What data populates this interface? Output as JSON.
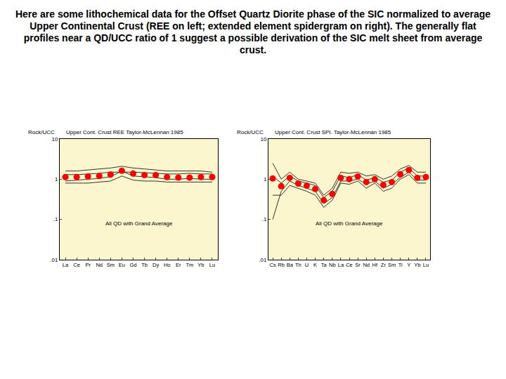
{
  "page": {
    "title": "Here are some lithochemical data for the Offset Quartz Diorite phase of the SIC normalized to average Upper Continental Crust (REE on left; extended element spidergram on right). The generally flat profiles near a QD/UCC ratio of 1 suggest a possible derivation of the SIC melt sheet from average crust."
  },
  "chart_data": [
    {
      "type": "line",
      "title": "Upper Cont. Crust REE Taylor-McLennan 1985",
      "ylabel": "Rock/UCC",
      "annotation": "All QD with Grand Average",
      "log": "y",
      "grid": false,
      "ylim": [
        0.01,
        10
      ],
      "yticks": [
        {
          "value": 0.01,
          "label": ".01"
        },
        {
          "value": 0.1,
          "label": ".1"
        },
        1,
        10
      ],
      "categories": [
        "La",
        "Ce",
        "Pr",
        "Nd",
        "Sm",
        "Eu",
        "Gd",
        "Tb",
        "Dy",
        "Ho",
        "Er",
        "Tm",
        "Yb",
        "Lu"
      ],
      "series": [
        {
          "color": "#000000",
          "line_style": "solid",
          "values": [
            1.6,
            1.6,
            1.7,
            1.8,
            1.9,
            2.1,
            1.9,
            1.8,
            1.7,
            1.6,
            1.6,
            1.6,
            1.6,
            1.5
          ]
        },
        {
          "color": "#000000",
          "line_style": "solid",
          "values": [
            0.8,
            0.8,
            0.8,
            0.85,
            0.9,
            1.2,
            0.95,
            0.9,
            0.9,
            0.85,
            0.85,
            0.85,
            0.85,
            0.85
          ]
        },
        {
          "color": "#000000",
          "line_style": "solid",
          "values": [
            1.3,
            1.3,
            1.35,
            1.4,
            1.5,
            1.5,
            1.5,
            1.45,
            1.4,
            1.35,
            1.35,
            1.4,
            1.35,
            1.35
          ]
        },
        {
          "color": "#000000",
          "line_style": "solid",
          "values": [
            0.9,
            0.95,
            1.0,
            1.05,
            1.15,
            1.6,
            1.2,
            1.15,
            1.1,
            1.0,
            1.0,
            1.05,
            1.0,
            1.0
          ]
        },
        {
          "color": "#ff0000",
          "marker": "circle",
          "values": [
            1.13,
            1.13,
            1.17,
            1.2,
            1.3,
            1.62,
            1.38,
            1.27,
            1.27,
            1.13,
            1.1,
            1.1,
            1.13,
            1.13
          ]
        }
      ]
    },
    {
      "type": "line",
      "title": "Upper Cont. Crust SPI. Taylor-McLennan 1985",
      "ylabel": "Rock/UCC",
      "annotation": "All QD with Grand Average",
      "log": "y",
      "grid": false,
      "ylim": [
        0.01,
        10
      ],
      "yticks": [
        {
          "value": 0.01,
          "label": ".01"
        },
        {
          "value": 0.1,
          "label": ".1"
        },
        1,
        10
      ],
      "categories": [
        "Cs",
        "Rb",
        "Ba",
        "Th",
        "U",
        "K",
        "Ta",
        "Nb",
        "La",
        "Ce",
        "Sr",
        "Nd",
        "Hf",
        "Zr",
        "Sm",
        "Ti",
        "Y",
        "Yb",
        "Lu"
      ],
      "series": [
        {
          "color": "#000000",
          "line_style": "solid",
          "values": [
            2.5,
            1.0,
            1.5,
            1.0,
            0.9,
            0.8,
            0.4,
            0.6,
            1.5,
            1.4,
            1.5,
            1.2,
            1.3,
            1.0,
            1.2,
            1.8,
            2.2,
            1.5,
            1.5
          ]
        },
        {
          "color": "#000000",
          "line_style": "solid",
          "values": [
            0.4,
            0.4,
            0.7,
            0.6,
            0.5,
            0.4,
            0.2,
            0.3,
            0.8,
            0.75,
            0.9,
            0.6,
            0.8,
            0.5,
            0.6,
            1.0,
            1.3,
            0.8,
            0.8
          ]
        },
        {
          "color": "#000000",
          "line_style": "solid",
          "values": [
            1.2,
            0.8,
            1.2,
            0.9,
            0.8,
            0.7,
            0.35,
            0.5,
            1.2,
            1.1,
            1.3,
            0.95,
            1.1,
            0.85,
            0.95,
            1.5,
            1.9,
            1.2,
            1.2
          ]
        },
        {
          "color": "#000000",
          "line_style": "solid",
          "values": [
            0.1,
            0.5,
            0.9,
            0.7,
            0.6,
            0.5,
            0.25,
            0.35,
            0.9,
            0.9,
            1.0,
            0.75,
            0.9,
            0.6,
            0.75,
            1.1,
            1.5,
            0.95,
            0.95
          ]
        },
        {
          "color": "#ff0000",
          "marker": "circle",
          "values": [
            1.04,
            0.67,
            1.08,
            0.78,
            0.69,
            0.57,
            0.3,
            0.43,
            1.08,
            1.0,
            1.17,
            0.85,
            1.0,
            0.72,
            0.85,
            1.33,
            1.69,
            1.08,
            1.13
          ]
        }
      ]
    }
  ]
}
